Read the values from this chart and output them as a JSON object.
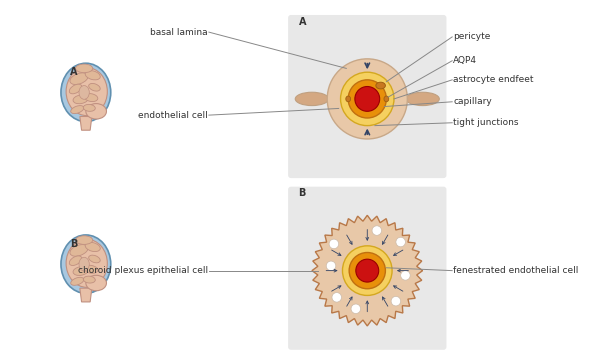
{
  "panel_a_label": "A",
  "panel_b_label": "B",
  "labels_left_a": [
    "basal lamina",
    "endothelial cell"
  ],
  "labels_right_a": [
    "pericyte",
    "AQP4",
    "astrocyte endfeet",
    "capillary",
    "tight junctions"
  ],
  "labels_left_b": [
    "choroid plexus epithelial cell"
  ],
  "labels_right_b": [
    "fenestrated endothelial cell"
  ],
  "colors": {
    "bg_color": "#ffffff",
    "panel_bg": "#e8e8e8",
    "red_core": "#cc1111",
    "orange_ring": "#e8900a",
    "yellow_ring": "#f5d060",
    "skin_outer": "#e8c8a8",
    "skin_vessel": "#d4a882",
    "blue_brain": "#a8c8e0",
    "brain_fill": "#e8c0a8",
    "pericyte_color": "#c87820",
    "dark_navy": "#334466",
    "brown_jagged": "#b87848",
    "line_color": "#888888",
    "text_color": "#333333"
  }
}
